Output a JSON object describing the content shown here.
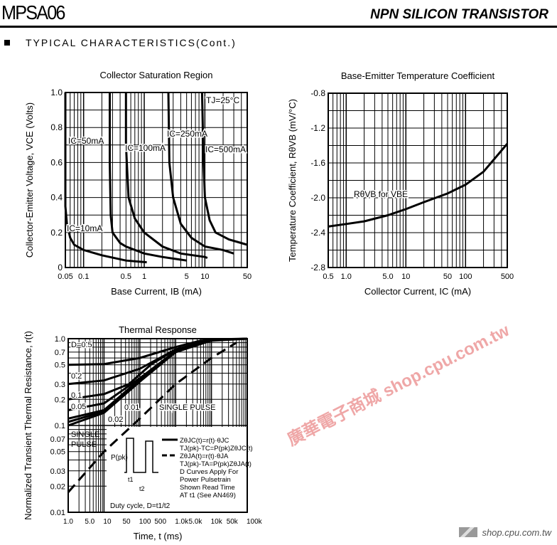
{
  "header": {
    "part_number": "MPSA06",
    "device_type": "NPN SILICON TRANSISTOR",
    "section": "TYPICAL CHARACTERISTICS(Cont.)"
  },
  "watermark": "廣華電子商城 shop.cpu.com.tw",
  "footer": {
    "site": "shop.cpu.com.tw"
  },
  "chart_data": [
    {
      "id": "sat",
      "type": "line",
      "title": "Collector Saturation Region",
      "xlabel": "Base Current, I_B (mA)",
      "ylabel": "Collector-Emitter Voltage, V_CE (Volts)",
      "xscale": "log",
      "xlim": [
        0.05,
        50
      ],
      "ylim": [
        0,
        1
      ],
      "xticks": [
        [
          0.05,
          "0.05"
        ],
        [
          0.1,
          "0.1"
        ],
        [
          0.5,
          "0.5"
        ],
        [
          1,
          "1"
        ],
        [
          5,
          "5"
        ],
        [
          10,
          "10"
        ],
        [
          50,
          "50"
        ]
      ],
      "yticks": [
        [
          0,
          "0"
        ],
        [
          0.2,
          "0.2"
        ],
        [
          0.4,
          "0.4"
        ],
        [
          0.6,
          "0.6"
        ],
        [
          0.8,
          "0.8"
        ],
        [
          1,
          "1.0"
        ]
      ],
      "annotation": "TJ=25°C",
      "series": [
        {
          "name": "IC=10mA",
          "x": [
            0.05,
            0.05,
            0.053,
            0.06,
            0.07,
            0.1,
            0.2,
            0.5,
            1.1
          ],
          "y": [
            1,
            0.35,
            0.25,
            0.17,
            0.13,
            0.1,
            0.07,
            0.04,
            0.03
          ]
        },
        {
          "name": "IC=50mA",
          "x": [
            0.27,
            0.27,
            0.28,
            0.3,
            0.4,
            0.5,
            1,
            2,
            5
          ],
          "y": [
            1,
            0.6,
            0.3,
            0.2,
            0.14,
            0.12,
            0.08,
            0.06,
            0.04
          ]
        },
        {
          "name": "IC=100mA",
          "x": [
            0.5,
            0.5,
            0.55,
            0.7,
            1,
            2,
            4,
            10,
            11
          ],
          "y": [
            1,
            0.7,
            0.4,
            0.28,
            0.2,
            0.12,
            0.08,
            0.06,
            0.055
          ]
        },
        {
          "name": "IC=250mA",
          "x": [
            2.5,
            2.6,
            3,
            4,
            6,
            10,
            20,
            30
          ],
          "y": [
            1,
            0.6,
            0.4,
            0.25,
            0.17,
            0.12,
            0.1,
            0.08
          ]
        },
        {
          "name": "IC=500mA",
          "x": [
            9,
            9.5,
            10,
            12,
            15,
            25,
            50
          ],
          "y": [
            1,
            0.6,
            0.4,
            0.27,
            0.2,
            0.16,
            0.13
          ]
        }
      ]
    },
    {
      "id": "tc",
      "type": "line",
      "title": "Base-Emitter Temperature Coefficient",
      "xlabel": "Collector Current, I_C (mA)",
      "ylabel": "Temperature Coefficient, R_θVB (mV/°C)",
      "xscale": "log",
      "xlim": [
        0.5,
        500
      ],
      "ylim": [
        -2.8,
        -0.8
      ],
      "xticks": [
        [
          0.5,
          "0.5"
        ],
        [
          1,
          "1.0"
        ],
        [
          5,
          "5.0"
        ],
        [
          10,
          "10"
        ],
        [
          50,
          "50"
        ],
        [
          100,
          "100"
        ],
        [
          500,
          "500"
        ]
      ],
      "yticks": [
        [
          -0.8,
          "-0.8"
        ],
        [
          -1.2,
          "-1.2"
        ],
        [
          -1.6,
          "-1.6"
        ],
        [
          -2,
          "-2.0"
        ],
        [
          -2.4,
          "-2.4"
        ],
        [
          -2.8,
          "-2.8"
        ]
      ],
      "series": [
        {
          "name": "RθVB for VBE",
          "x": [
            0.5,
            1,
            2,
            5,
            10,
            20,
            50,
            100,
            200,
            500
          ],
          "y": [
            -2.33,
            -2.3,
            -2.27,
            -2.2,
            -2.13,
            -2.05,
            -1.95,
            -1.85,
            -1.7,
            -1.38
          ]
        }
      ]
    },
    {
      "id": "th",
      "type": "line",
      "title": "Thermal Response",
      "xlabel": "Time, t (ms)",
      "ylabel": "Normalized Transient Thermal Resistance, r(t)",
      "xscale": "log",
      "yscale": "log",
      "xlim": [
        1,
        100000
      ],
      "ylim": [
        0.01,
        1
      ],
      "xticks": [
        [
          1,
          "1.0"
        ],
        [
          5,
          "5.0"
        ],
        [
          10,
          "10"
        ],
        [
          50,
          "50"
        ],
        [
          100,
          "100"
        ],
        [
          500,
          "500"
        ],
        [
          1000,
          "1.0k"
        ],
        [
          5000,
          "5.0k"
        ],
        [
          10000,
          "10k"
        ],
        [
          50000,
          "50k"
        ],
        [
          100000,
          "100k"
        ]
      ],
      "yticks": [
        [
          1,
          "1.0"
        ],
        [
          0.7,
          "0.7"
        ],
        [
          0.5,
          "0.5"
        ],
        [
          0.3,
          "0.3"
        ],
        [
          0.2,
          "0.2"
        ],
        [
          0.1,
          "0.1"
        ],
        [
          0.07,
          "0.07"
        ],
        [
          0.05,
          "0.05"
        ],
        [
          0.03,
          "0.03"
        ],
        [
          0.02,
          "0.02"
        ],
        [
          0.01,
          "0.01"
        ]
      ],
      "series": [
        {
          "name": "D=0.5",
          "x": [
            1,
            10,
            100,
            1000,
            5000,
            100000
          ],
          "y": [
            0.5,
            0.51,
            0.6,
            0.8,
            0.95,
            1
          ]
        },
        {
          "name": "0.2",
          "x": [
            1,
            10,
            100,
            1000,
            10000,
            100000
          ],
          "y": [
            0.3,
            0.33,
            0.45,
            0.75,
            0.98,
            1
          ]
        },
        {
          "name": "0.1",
          "x": [
            1,
            10,
            50,
            200,
            1000,
            10000
          ],
          "y": [
            0.2,
            0.23,
            0.3,
            0.5,
            0.75,
            0.97
          ]
        },
        {
          "name": "0.05",
          "x": [
            1,
            10,
            100,
            1000,
            10000
          ],
          "y": [
            0.15,
            0.18,
            0.35,
            0.72,
            0.97
          ]
        },
        {
          "name": "0.02",
          "x": [
            1,
            10,
            100,
            1000,
            10000
          ],
          "y": [
            0.12,
            0.15,
            0.34,
            0.7,
            0.96
          ]
        },
        {
          "name": "0.01",
          "x": [
            1,
            10,
            100,
            1000,
            10000
          ],
          "y": [
            0.11,
            0.145,
            0.33,
            0.7,
            0.95
          ]
        },
        {
          "name": "SINGLE PULSE",
          "x": [
            1,
            10,
            100,
            1000,
            5000,
            100000
          ],
          "y": [
            0.1,
            0.14,
            0.32,
            0.7,
            0.93,
            1
          ]
        },
        {
          "name": "SINGLE PULSE (Z θJA)",
          "dashed": true,
          "x": [
            1,
            10,
            100,
            1000,
            10000,
            50000
          ],
          "y": [
            0.017,
            0.05,
            0.12,
            0.3,
            0.6,
            0.9
          ]
        }
      ],
      "legend": [
        "ZθJC(t)=r(t)·θJC",
        "TJ(pk)-TC=P(pk)ZθJC(t)",
        "ZθJA(t)=r(t)·θJA",
        "TJ(pk)-TA=P(pk)ZθJA(t)",
        "D Curves Apply For",
        "Power Pulsetrain",
        "Shown Read Time",
        "AT t1 (See AN469)"
      ],
      "inset": {
        "ppk": "P(pk)",
        "t1": "t1",
        "t2": "t2",
        "duty": "Duty cycle, D=t1/t2"
      }
    }
  ]
}
